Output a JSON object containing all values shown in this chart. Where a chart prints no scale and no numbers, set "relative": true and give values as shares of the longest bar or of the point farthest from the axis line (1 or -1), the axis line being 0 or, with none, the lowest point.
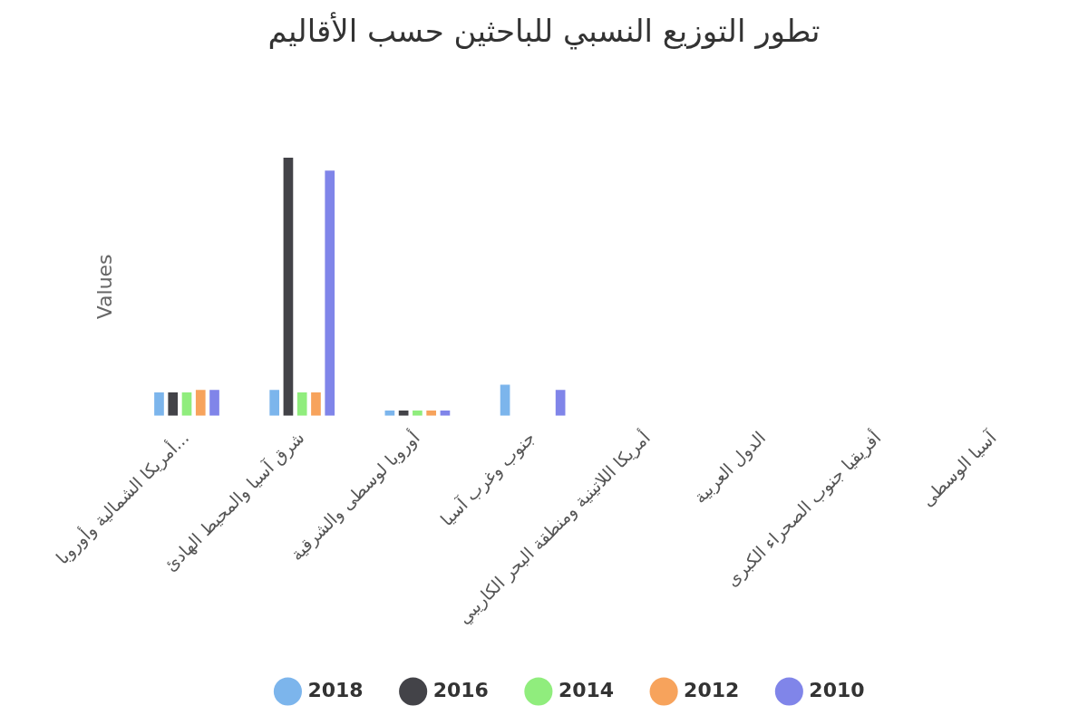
{
  "chart_data": {
    "type": "bar",
    "title": "تطور التوزيع النسبي للباحثين حسب الأقاليم",
    "ylabel": "Values",
    "relative": true,
    "grid": false,
    "legend": "bottom",
    "categories": [
      "أمريكا الشمالية وأوروبا...",
      "شرق آسيا والمحيط الهادئ",
      "أوروبا لوسطى والشرقية",
      "جنوب وغرب آسيا",
      "أمريكا اللاتينية ومنطقة البحر الكاريبي",
      "الدول العربية",
      "أفريقيا جنوب الصحراء الكبرى",
      "آسيا الوسطى"
    ],
    "series": [
      {
        "name": "2018",
        "color": "#7cb5ec",
        "values": [
          0.09,
          0.1,
          0.02,
          0.12,
          null,
          null,
          null,
          null
        ]
      },
      {
        "name": "2016",
        "color": "#434348",
        "values": [
          0.09,
          1,
          0.02,
          null,
          null,
          null,
          null,
          null
        ]
      },
      {
        "name": "2014",
        "color": "#90ed7d",
        "values": [
          0.09,
          0.09,
          0.02,
          null,
          null,
          null,
          null,
          null
        ]
      },
      {
        "name": "2012",
        "color": "#f7a35c",
        "values": [
          0.1,
          0.09,
          0.02,
          null,
          null,
          null,
          null,
          null
        ]
      },
      {
        "name": "2010",
        "color": "#8085e9",
        "values": [
          0.1,
          0.95,
          0.02,
          0.1,
          null,
          null,
          null,
          null
        ]
      }
    ]
  }
}
